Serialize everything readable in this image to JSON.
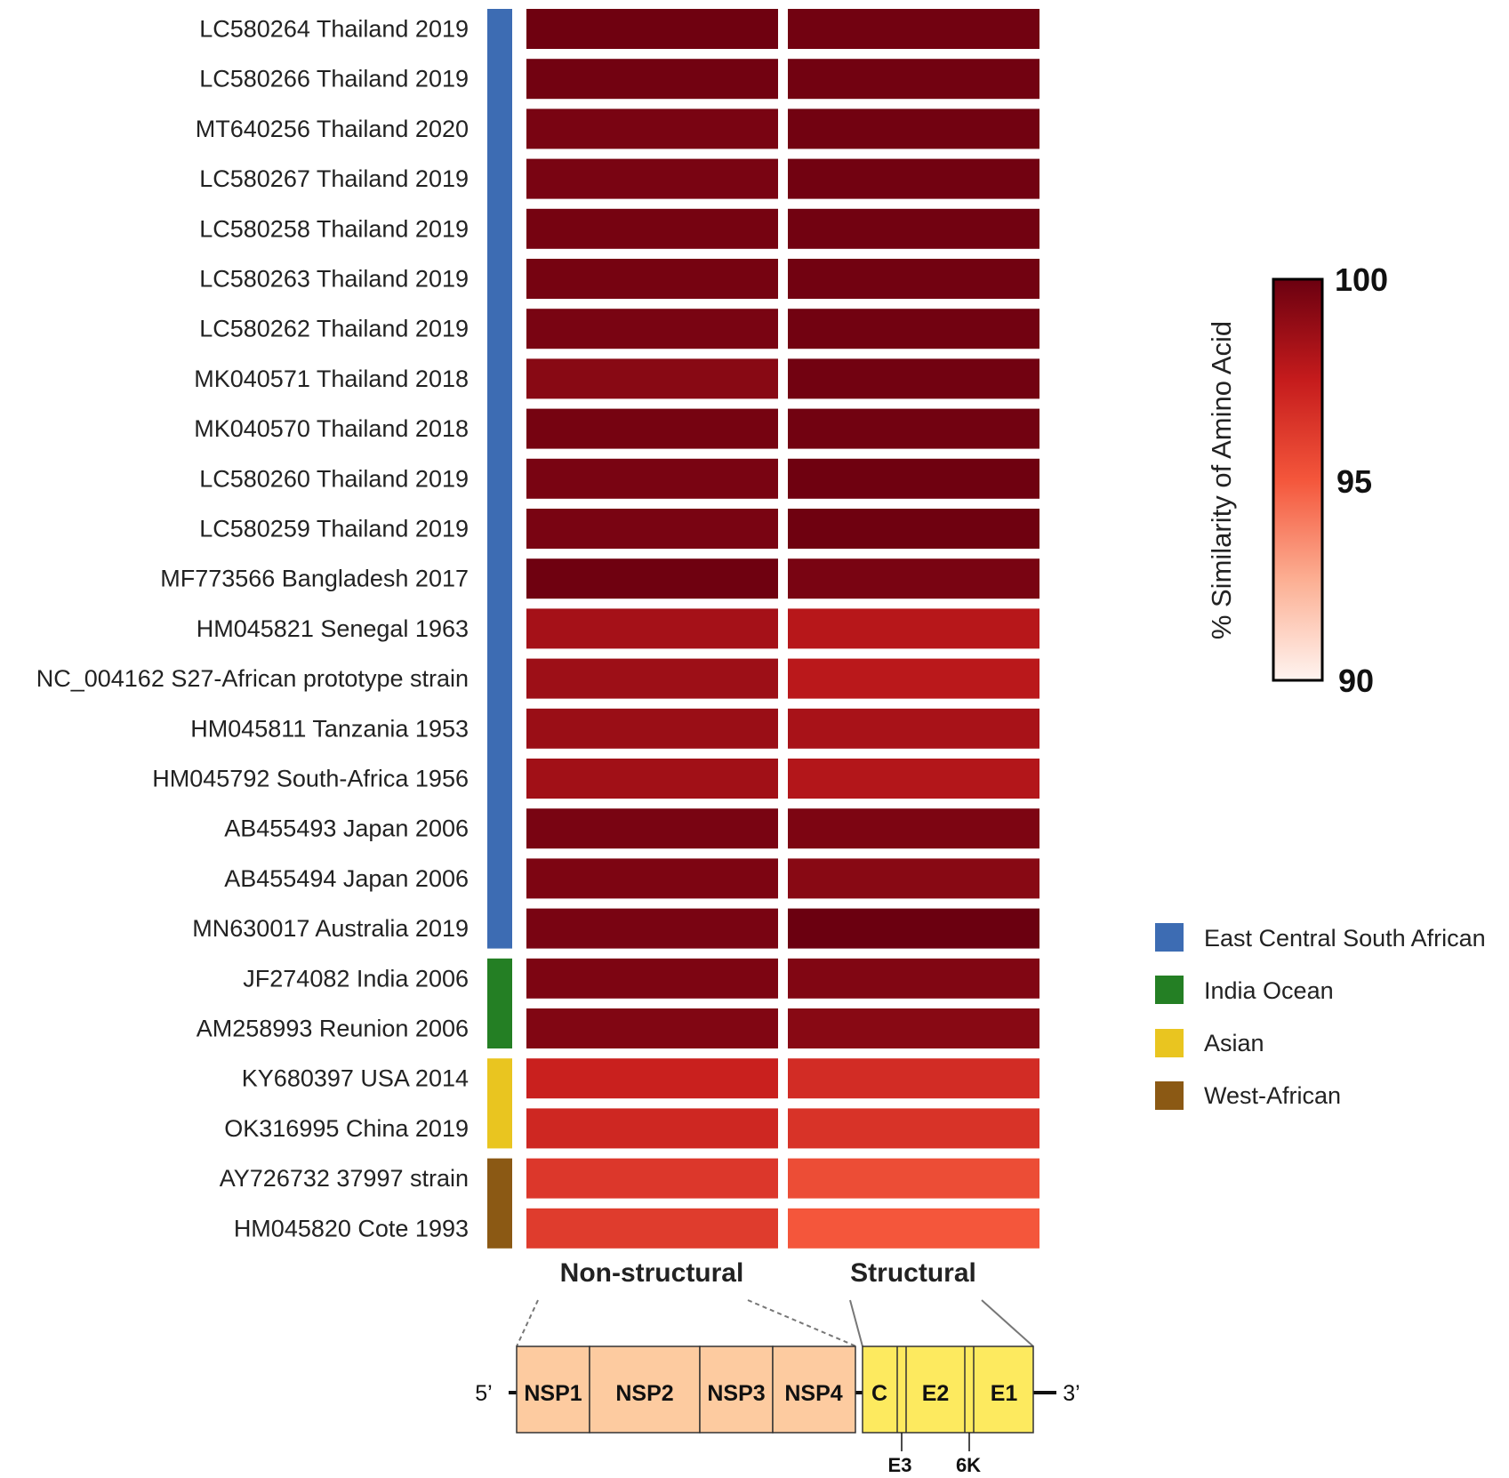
{
  "chart_data": {
    "type": "heatmap",
    "columns": [
      "Non-structural",
      "Structural"
    ],
    "rows": [
      {
        "label": "LC580264 Thailand 2019",
        "group": 0,
        "values": [
          99.9,
          99.8
        ]
      },
      {
        "label": "LC580266 Thailand 2019",
        "group": 0,
        "values": [
          99.8,
          99.8
        ]
      },
      {
        "label": "MT640256 Thailand 2020",
        "group": 0,
        "values": [
          99.6,
          99.8
        ]
      },
      {
        "label": "LC580267 Thailand 2019",
        "group": 0,
        "values": [
          99.6,
          99.8
        ]
      },
      {
        "label": "LC580258 Thailand 2019",
        "group": 0,
        "values": [
          99.7,
          99.8
        ]
      },
      {
        "label": "LC580263 Thailand 2019",
        "group": 0,
        "values": [
          99.7,
          99.8
        ]
      },
      {
        "label": "LC580262 Thailand 2019",
        "group": 0,
        "values": [
          99.6,
          99.8
        ]
      },
      {
        "label": "MK040571 Thailand 2018",
        "group": 0,
        "values": [
          99.2,
          99.8
        ]
      },
      {
        "label": "MK040570 Thailand 2018",
        "group": 0,
        "values": [
          99.7,
          99.8
        ]
      },
      {
        "label": "LC580260 Thailand 2019",
        "group": 0,
        "values": [
          99.6,
          99.9
        ]
      },
      {
        "label": "LC580259 Thailand 2019",
        "group": 0,
        "values": [
          99.6,
          99.9
        ]
      },
      {
        "label": "MF773566 Bangladesh 2017",
        "group": 0,
        "values": [
          99.9,
          99.6
        ]
      },
      {
        "label": "HM045821 Senegal 1963",
        "group": 0,
        "values": [
          98.4,
          97.9
        ]
      },
      {
        "label": "NC_004162 S27-African prototype strain",
        "group": 0,
        "values": [
          98.6,
          97.8
        ]
      },
      {
        "label": "HM045811 Tanzania 1953",
        "group": 0,
        "values": [
          98.7,
          98.3
        ]
      },
      {
        "label": "HM045792 South-Africa 1956",
        "group": 0,
        "values": [
          98.5,
          98.0
        ]
      },
      {
        "label": "AB455493 Japan 2006",
        "group": 0,
        "values": [
          99.6,
          99.5
        ]
      },
      {
        "label": "AB455494 Japan 2006",
        "group": 0,
        "values": [
          99.5,
          99.2
        ]
      },
      {
        "label": "MN630017 Australia 2019",
        "group": 0,
        "values": [
          99.6,
          100.0
        ]
      },
      {
        "label": "JF274082 India 2006",
        "group": 1,
        "values": [
          99.5,
          99.4
        ]
      },
      {
        "label": "AM258993 Reunion 2006",
        "group": 1,
        "values": [
          99.4,
          99.2
        ]
      },
      {
        "label": "KY680397 USA 2014",
        "group": 2,
        "values": [
          97.3,
          96.8
        ]
      },
      {
        "label": "OK316995 China 2019",
        "group": 2,
        "values": [
          97.0,
          96.5
        ]
      },
      {
        "label": "AY726732 37997 strain",
        "group": 3,
        "values": [
          96.3,
          95.4
        ]
      },
      {
        "label": "HM045820 Cote 1993",
        "group": 3,
        "values": [
          96.1,
          95.0
        ]
      }
    ],
    "groups": [
      {
        "name": "East Central South African",
        "color": "#3d6cb3"
      },
      {
        "name": "India Ocean",
        "color": "#247f24"
      },
      {
        "name": "Asian",
        "color": "#e9c520"
      },
      {
        "name": "West-African",
        "color": "#8b5914"
      }
    ],
    "colorscale": {
      "title": "% Similarity of Amino Acid",
      "min": 90,
      "max": 100,
      "ticks": [
        "100",
        "95",
        "90"
      ],
      "stops": [
        "#fff4f0",
        "#fcaf93",
        "#f4563b",
        "#c51b1c",
        "#6b0010"
      ]
    }
  },
  "genome": {
    "five_prime": "5’",
    "three_prime": "3’",
    "nonstructural": [
      "NSP1",
      "NSP2",
      "NSP3",
      "NSP4"
    ],
    "structural": [
      "C",
      "E2",
      "E1"
    ],
    "small_labels": [
      "E3",
      "6K"
    ],
    "nonstructural_color": "#fdcba0",
    "structural_color": "#fdea5f"
  }
}
